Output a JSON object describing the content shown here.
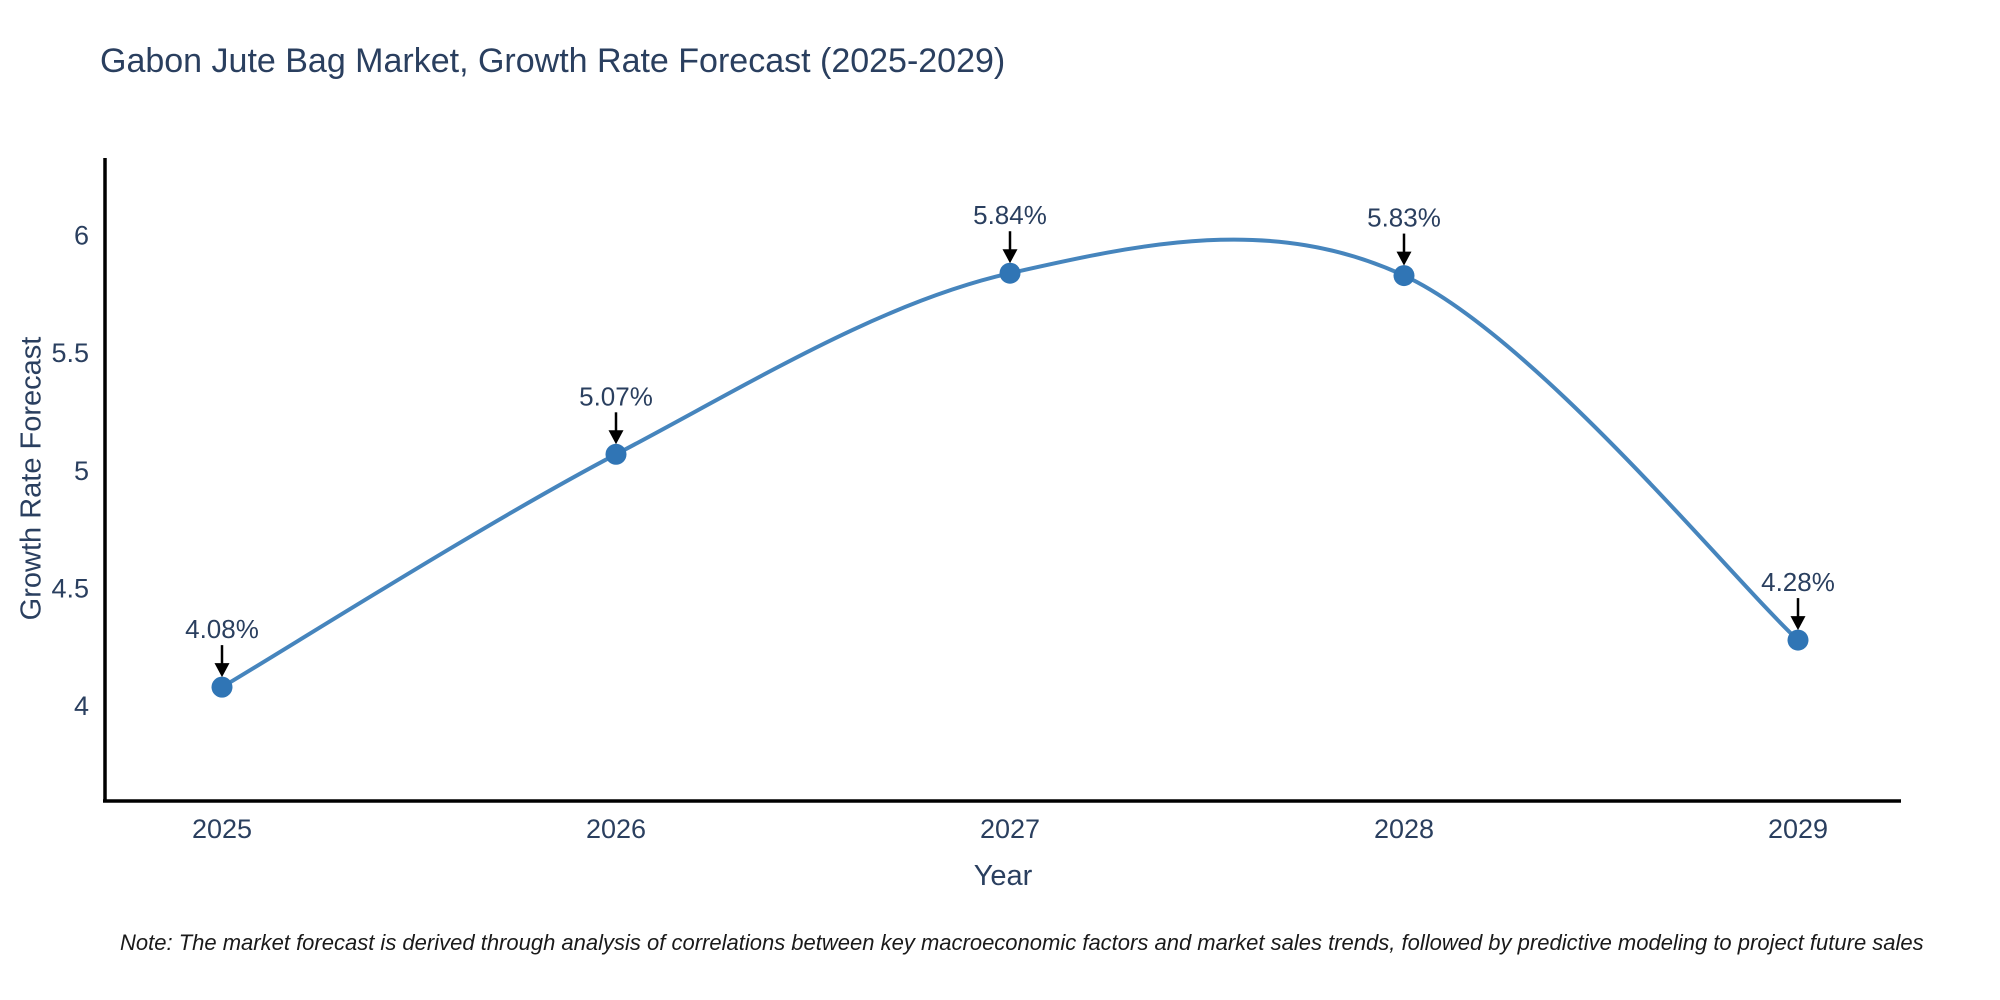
{
  "chart_data": {
    "type": "line",
    "title": "Gabon Jute Bag Market, Growth Rate Forecast (2025-2029)",
    "xlabel": "Year",
    "ylabel": "Growth Rate Forecast",
    "categories": [
      "2025",
      "2026",
      "2027",
      "2028",
      "2029"
    ],
    "values": [
      4.08,
      5.07,
      5.84,
      5.83,
      4.28
    ],
    "point_labels": [
      "4.08%",
      "5.07%",
      "5.84%",
      "5.83%",
      "4.28%"
    ],
    "yticks": [
      4,
      4.5,
      5,
      5.5,
      6
    ],
    "ylim": [
      3.6,
      6.33
    ],
    "line_shape": "spline",
    "grid": false,
    "legend": false,
    "colors": {
      "line": "#4685bd",
      "marker": "#3075b5",
      "axis": "#000000",
      "text": "#2a3f5f",
      "annotation_arrow": "#000000"
    },
    "note": "Note: The market forecast is derived through analysis of correlations between key macroeconomic factors and market sales trends, followed by predictive modeling to project future sales"
  }
}
